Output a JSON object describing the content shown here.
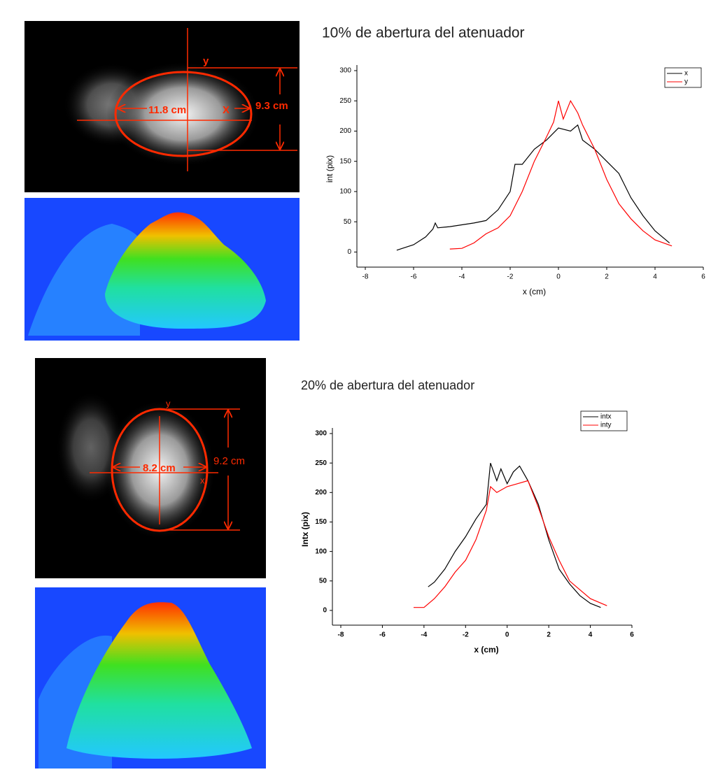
{
  "images": [
    {
      "axis_y_label": "y",
      "width_label": "11.8 cm",
      "axis_x_label": "X",
      "height_label": "9.3 cm"
    },
    {
      "axis_y_label": "y",
      "width_label": "8.2 cm",
      "axis_x_label": "x",
      "height_label": "9.2 cm"
    }
  ],
  "chart_data": [
    {
      "type": "line",
      "title": "10% de abertura del atenuador",
      "x_label": "x (cm)",
      "y_label": "int (pix)",
      "xlim": [
        -8,
        6
      ],
      "xticks": [
        -8,
        -6,
        -4,
        -2,
        0,
        2,
        4,
        6
      ],
      "ylim": [
        -25,
        300
      ],
      "yticks": [
        0,
        50,
        100,
        150,
        200,
        250,
        300
      ],
      "series": [
        {
          "name": "x",
          "color": "#000000",
          "x": [
            -6.7,
            -6,
            -5.5,
            -5.2,
            -5.1,
            -5,
            -4.5,
            -4,
            -3.5,
            -3,
            -2.5,
            -2,
            -1.8,
            -1.5,
            -1,
            -0.5,
            0,
            0.5,
            0.8,
            1,
            1.5,
            2,
            2.5,
            3,
            3.5,
            4,
            4.6
          ],
          "values": [
            3,
            12,
            25,
            38,
            48,
            40,
            42,
            45,
            48,
            52,
            70,
            100,
            145,
            145,
            170,
            185,
            205,
            200,
            210,
            185,
            170,
            150,
            130,
            90,
            60,
            35,
            15
          ]
        },
        {
          "name": "y",
          "color": "#ff0000",
          "x": [
            -4.5,
            -4,
            -3.5,
            -3,
            -2.5,
            -2,
            -1.5,
            -1,
            -0.5,
            -0.2,
            0,
            0.2,
            0.5,
            0.8,
            1,
            1.5,
            2,
            2.5,
            3,
            3.5,
            4,
            4.7
          ],
          "values": [
            5,
            6,
            15,
            30,
            40,
            60,
            100,
            150,
            190,
            215,
            250,
            220,
            250,
            230,
            210,
            170,
            120,
            80,
            55,
            35,
            20,
            10
          ]
        }
      ]
    },
    {
      "type": "line",
      "title": "20% de abertura del atenuador",
      "x_label": "x (cm)",
      "y_label": "Intx (pix)",
      "xlim": [
        -8,
        6
      ],
      "xticks": [
        -8,
        -6,
        -4,
        -2,
        0,
        2,
        4,
        6
      ],
      "ylim": [
        -25,
        300
      ],
      "yticks": [
        0,
        50,
        100,
        150,
        200,
        250,
        300
      ],
      "series": [
        {
          "name": "intx",
          "color": "#000000",
          "x": [
            -3.8,
            -3.5,
            -3,
            -2.5,
            -2,
            -1.5,
            -1,
            -0.8,
            -0.5,
            -0.3,
            0,
            0.3,
            0.6,
            1,
            1.5,
            2,
            2.5,
            3,
            3.5,
            4,
            4.5
          ],
          "values": [
            40,
            48,
            70,
            100,
            125,
            155,
            180,
            250,
            220,
            240,
            215,
            235,
            245,
            220,
            180,
            120,
            70,
            45,
            25,
            12,
            5
          ]
        },
        {
          "name": "inty",
          "color": "#ff0000",
          "x": [
            -4.5,
            -4,
            -3.5,
            -3,
            -2.5,
            -2,
            -1.5,
            -1,
            -0.8,
            -0.5,
            0,
            0.5,
            1,
            1.5,
            2,
            2.5,
            3,
            3.5,
            4,
            4.8
          ],
          "values": [
            5,
            5,
            20,
            40,
            65,
            85,
            120,
            170,
            210,
            200,
            210,
            215,
            220,
            175,
            125,
            85,
            50,
            35,
            20,
            8
          ]
        }
      ]
    }
  ]
}
